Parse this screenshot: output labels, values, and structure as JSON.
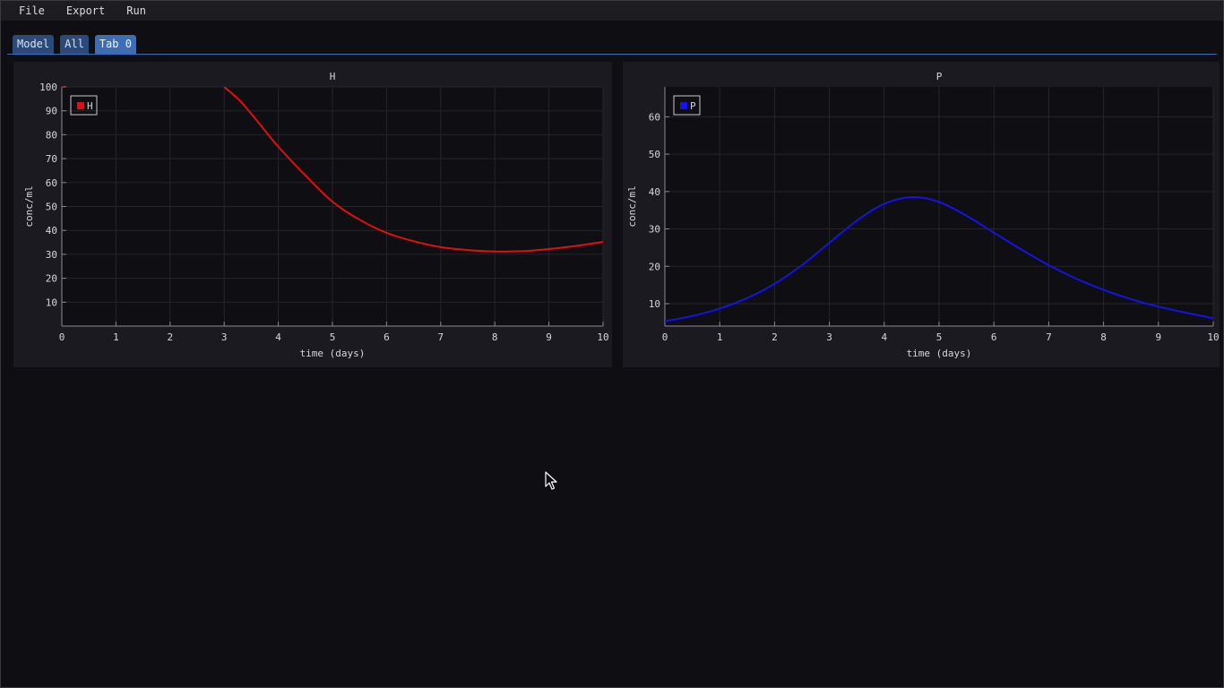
{
  "menu": {
    "items": [
      "File",
      "Export",
      "Run"
    ]
  },
  "tabs": [
    {
      "label": "Model",
      "active": false
    },
    {
      "label": "All",
      "active": false
    },
    {
      "label": "Tab 0",
      "active": true
    }
  ],
  "colors": {
    "background": "#0f0e13",
    "panel": "#1b1a20",
    "plot_area": "#0f0e13",
    "tab": "#2a4a7c",
    "tab_active": "#3d6db5",
    "series_h": "#e01010",
    "series_p": "#1414e6"
  },
  "chart_data": [
    {
      "type": "line",
      "title": "H",
      "xlabel": "time (days)",
      "ylabel": "conc/ml",
      "xlim": [
        0,
        10
      ],
      "ylim": [
        0,
        100
      ],
      "xticks": [
        "0",
        "1",
        "2",
        "3",
        "4",
        "5",
        "6",
        "7",
        "8",
        "9",
        "10"
      ],
      "yticks": [
        "10",
        "20",
        "30",
        "40",
        "50",
        "60",
        "70",
        "80",
        "90",
        "100"
      ],
      "grid": true,
      "legend": "top-left",
      "series": [
        {
          "name": "H",
          "color": "#e01010",
          "x": [
            3.0,
            3.3,
            3.6,
            4.0,
            4.5,
            5.0,
            5.5,
            6.0,
            6.5,
            7.0,
            7.5,
            8.0,
            8.5,
            9.0,
            9.5,
            10.0
          ],
          "y": [
            100,
            94,
            86,
            75,
            63,
            52,
            44.5,
            39,
            35.5,
            33,
            31.8,
            31.2,
            31.3,
            32.2,
            33.5,
            35.2
          ]
        }
      ]
    },
    {
      "type": "line",
      "title": "P",
      "xlabel": "time (days)",
      "ylabel": "conc/ml",
      "xlim": [
        0,
        10
      ],
      "ylim": [
        4,
        68
      ],
      "xticks": [
        "0",
        "1",
        "2",
        "3",
        "4",
        "5",
        "6",
        "7",
        "8",
        "9",
        "10"
      ],
      "yticks": [
        "10",
        "20",
        "30",
        "40",
        "50",
        "60"
      ],
      "grid": true,
      "legend": "top-left",
      "series": [
        {
          "name": "P",
          "color": "#1414e6",
          "x": [
            0,
            0.5,
            1.0,
            1.5,
            2.0,
            2.5,
            3.0,
            3.5,
            4.0,
            4.5,
            5.0,
            5.5,
            6.0,
            6.5,
            7.0,
            7.5,
            8.0,
            8.5,
            9.0,
            9.5,
            10.0
          ],
          "y": [
            5.3,
            6.7,
            8.7,
            11.5,
            15.3,
            20.3,
            26.3,
            32.2,
            36.7,
            38.5,
            37.2,
            33.5,
            29,
            24.5,
            20.3,
            16.7,
            13.7,
            11.2,
            9.2,
            7.6,
            6.1
          ]
        }
      ]
    }
  ]
}
